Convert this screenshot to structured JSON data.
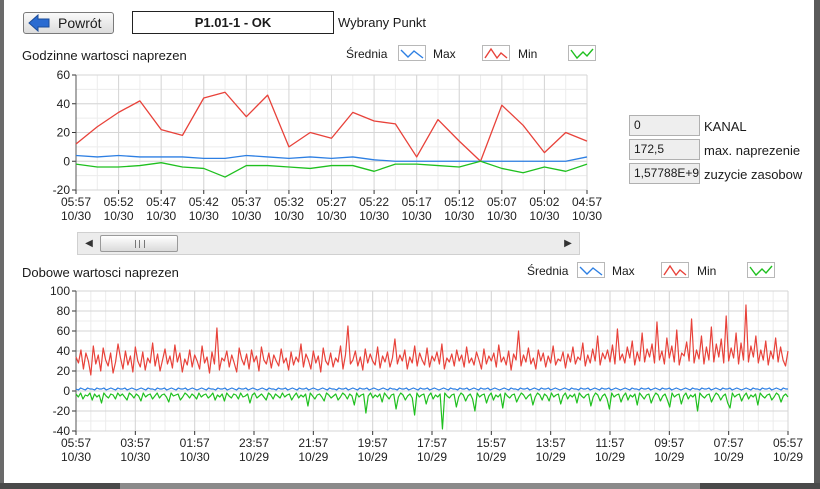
{
  "toolbar": {
    "back_label": "Powrót",
    "status": "P1.01-1 - OK",
    "status_caption": "Wybrany Punkt"
  },
  "side_panel": [
    {
      "value": "0",
      "label": "KANAL"
    },
    {
      "value": "172,5",
      "label": "max. naprezenie"
    },
    {
      "value": "1,57788E+9",
      "label": "zuzycie zasobow"
    }
  ],
  "legend": {
    "avg": "Średnia",
    "max": "Max",
    "min": "Min"
  },
  "colors": {
    "red": "#e8423a",
    "blue": "#2d7fe3",
    "green": "#1fc01f",
    "grid": "#d6d6d6"
  },
  "chart_data": [
    {
      "type": "line",
      "title": "Godzinne wartosci naprezen",
      "ylim": [
        -20,
        60
      ],
      "yticks": [
        -20,
        0,
        20,
        40,
        60
      ],
      "x_tick_labels": [
        [
          "05:57",
          "10/30"
        ],
        [
          "05:52",
          "10/30"
        ],
        [
          "05:47",
          "10/30"
        ],
        [
          "05:42",
          "10/30"
        ],
        [
          "05:37",
          "10/30"
        ],
        [
          "05:32",
          "10/30"
        ],
        [
          "05:27",
          "10/30"
        ],
        [
          "05:22",
          "10/30"
        ],
        [
          "05:17",
          "10/30"
        ],
        [
          "05:12",
          "10/30"
        ],
        [
          "05:07",
          "10/30"
        ],
        [
          "05:02",
          "10/30"
        ],
        [
          "04:57",
          "10/30"
        ]
      ],
      "series": [
        {
          "color": "red",
          "values": [
            12,
            24,
            34,
            42,
            22,
            18,
            44,
            48,
            31,
            46,
            10,
            20,
            16,
            34,
            28,
            26,
            3,
            29,
            14,
            0,
            39,
            25,
            6,
            20,
            14
          ]
        },
        {
          "color": "blue",
          "values": [
            4,
            3,
            4,
            3,
            3,
            3,
            2,
            2,
            4,
            3,
            2,
            3,
            2,
            3,
            1,
            0,
            0,
            0,
            0,
            0,
            0,
            0,
            0,
            0,
            3
          ]
        },
        {
          "color": "green",
          "values": [
            -2,
            -4,
            -4,
            -3,
            -1,
            -4,
            -5,
            -11,
            -3,
            -3,
            -4,
            -5,
            -3,
            -3,
            -7,
            -2,
            -2,
            -3,
            -4,
            0,
            -5,
            -8,
            -4,
            -7,
            -2
          ]
        }
      ]
    },
    {
      "type": "line",
      "title": "Dobowe wartosci naprezen",
      "ylim": [
        -40,
        100
      ],
      "yticks": [
        -40,
        -20,
        0,
        20,
        40,
        60,
        80,
        100
      ],
      "x_tick_labels": [
        [
          "05:57",
          "10/30"
        ],
        [
          "03:57",
          "10/30"
        ],
        [
          "01:57",
          "10/30"
        ],
        [
          "23:57",
          "10/29"
        ],
        [
          "21:57",
          "10/29"
        ],
        [
          "19:57",
          "10/29"
        ],
        [
          "17:57",
          "10/29"
        ],
        [
          "15:57",
          "10/29"
        ],
        [
          "13:57",
          "10/29"
        ],
        [
          "11:57",
          "10/29"
        ],
        [
          "09:57",
          "10/29"
        ],
        [
          "07:57",
          "10/29"
        ],
        [
          "05:57",
          "10/29"
        ]
      ],
      "series": [
        {
          "color": "red",
          "values": [
            34,
            28,
            41,
            22,
            38,
            30,
            16,
            45,
            27,
            36,
            20,
            43,
            31,
            25,
            38,
            18,
            29,
            47,
            33,
            22,
            40,
            26,
            35,
            19,
            44,
            30,
            24,
            39,
            21,
            33,
            28,
            48,
            25,
            37,
            20,
            31,
            42,
            27,
            35,
            23,
            46,
            29,
            38,
            19,
            32,
            26,
            41,
            24,
            36,
            30,
            22,
            45,
            28,
            34,
            18,
            39,
            27,
            63,
            21,
            33,
            30,
            40,
            24,
            36,
            28,
            19,
            43,
            32,
            26,
            37,
            22,
            41,
            29,
            35,
            20,
            44,
            31,
            27,
            38,
            23,
            36,
            30,
            25,
            42,
            28,
            33,
            21,
            39,
            26,
            34,
            29,
            47,
            24,
            37,
            31,
            22,
            40,
            28,
            35,
            19,
            43,
            30,
            26,
            38,
            24,
            33,
            29,
            45,
            22,
            36,
            65,
            27,
            31,
            40,
            25,
            34,
            21,
            42,
            28,
            37,
            30,
            26,
            44,
            23,
            35,
            29,
            39,
            24,
            33,
            52,
            27,
            36,
            30,
            41,
            22,
            34,
            28,
            45,
            25,
            38,
            31,
            26,
            43,
            24,
            35,
            30,
            39,
            27,
            47,
            22,
            33,
            29,
            37,
            25,
            41,
            30,
            36,
            24,
            44,
            28,
            33,
            26,
            39,
            31,
            22,
            42,
            27,
            35,
            30,
            38,
            24,
            46,
            29,
            34,
            26,
            40,
            21,
            37,
            31,
            60,
            25,
            36,
            29,
            43,
            27,
            33,
            22,
            41,
            30,
            38,
            24,
            35,
            28,
            45,
            26,
            32,
            30,
            39,
            23,
            37,
            29,
            44,
            27,
            34,
            31,
            48,
            25,
            36,
            28,
            42,
            30,
            55,
            26,
            38,
            32,
            41,
            29,
            46,
            27,
            62,
            31,
            37,
            28,
            44,
            33,
            50,
            26,
            39,
            30,
            58,
            29,
            42,
            34,
            47,
            28,
            69,
            31,
            40,
            27,
            53,
            33,
            45,
            29,
            61,
            26,
            38,
            35,
            49,
            30,
            72,
            28,
            41,
            32,
            55,
            27,
            44,
            31,
            64,
            29,
            47,
            34,
            52,
            28,
            75,
            30,
            43,
            33,
            58,
            27,
            48,
            31,
            86,
            29,
            45,
            34,
            55,
            28,
            41,
            31,
            50,
            26,
            40,
            32,
            53,
            29,
            44,
            31,
            25,
            40
          ]
        },
        {
          "color": "blue",
          "values": [
            2,
            1,
            3,
            2,
            1,
            3,
            2,
            2,
            1,
            3,
            2,
            2,
            3,
            1,
            2,
            3,
            2,
            1,
            3,
            2,
            2,
            3,
            1,
            2,
            3,
            2,
            1,
            2,
            3,
            2,
            1,
            3,
            2,
            2,
            1,
            3,
            2,
            2,
            3,
            1,
            2,
            3,
            2,
            1,
            3,
            2,
            2,
            3,
            1,
            2,
            3,
            2,
            1,
            2,
            3,
            2,
            1,
            3,
            2,
            2,
            1,
            3,
            2,
            2,
            3,
            1,
            2,
            3,
            2,
            1,
            3,
            2,
            2,
            3,
            1,
            2,
            3,
            2,
            1,
            2,
            3,
            2,
            1,
            3,
            2,
            2,
            1,
            3,
            2,
            2,
            3,
            1,
            2,
            3,
            2,
            1,
            3,
            2,
            2,
            3,
            1,
            2,
            3,
            2,
            1,
            2,
            3,
            2,
            1,
            3,
            2,
            2,
            1,
            3,
            2,
            2,
            3,
            1,
            2,
            3,
            2,
            1,
            3,
            2,
            2,
            3,
            1,
            2,
            3,
            2,
            1,
            2,
            3,
            2,
            1,
            3,
            2,
            2,
            1,
            3,
            2,
            2,
            3,
            1,
            2,
            3,
            2,
            1,
            3,
            2,
            2,
            3,
            1,
            2,
            3,
            2,
            1,
            2,
            3,
            2,
            1,
            3,
            2,
            2,
            1,
            3,
            2,
            2,
            3,
            1,
            2,
            3,
            2,
            1,
            3,
            2,
            2,
            3,
            1,
            2,
            3,
            2,
            1,
            2,
            3,
            2,
            1,
            3,
            2,
            2,
            1,
            3,
            2,
            2,
            3,
            1,
            2,
            3,
            2,
            1,
            3,
            2,
            2,
            3,
            1,
            2,
            3,
            2,
            1,
            2,
            3,
            2,
            1,
            3,
            2,
            2,
            1,
            3,
            2,
            2,
            3,
            1,
            2,
            3,
            2,
            1,
            3,
            2,
            2,
            3,
            1,
            2,
            3,
            2,
            1,
            2,
            3,
            2,
            1,
            3,
            2,
            2,
            1,
            3,
            2,
            2,
            3,
            1,
            2,
            3,
            2,
            1,
            3,
            2,
            2,
            3,
            1,
            2,
            3,
            2,
            1,
            2,
            3,
            2,
            1,
            3,
            2,
            2,
            1,
            3,
            2,
            2,
            3,
            1,
            2,
            3,
            2,
            1,
            3,
            2,
            2,
            3,
            1,
            2,
            3,
            2,
            1,
            2,
            3,
            2,
            1,
            3,
            2,
            2,
            1,
            3,
            2,
            2,
            3,
            1,
            2,
            3,
            2,
            1,
            3,
            2,
            2
          ]
        },
        {
          "color": "green",
          "values": [
            -3,
            -6,
            -2,
            -8,
            -4,
            -5,
            -2,
            -9,
            -3,
            -6,
            -4,
            -12,
            -2,
            -5,
            -7,
            -3,
            -4,
            -8,
            -2,
            -5,
            -3,
            -6,
            -9,
            -2,
            -4,
            -7,
            -3,
            -5,
            -10,
            -2,
            -6,
            -4,
            -3,
            -8,
            -5,
            -2,
            -7,
            -4,
            -3,
            -6,
            -11,
            -2,
            -5,
            -4,
            -3,
            -9,
            -6,
            -2,
            -4,
            -7,
            -3,
            -5,
            -8,
            -2,
            -6,
            -4,
            -3,
            -7,
            -5,
            -2,
            -9,
            -4,
            -6,
            -3,
            -10,
            -2,
            -5,
            -7,
            -3,
            -4,
            -8,
            -2,
            -6,
            -5,
            -3,
            -12,
            -4,
            -2,
            -7,
            -5,
            -3,
            -6,
            -9,
            -2,
            -4,
            -8,
            -3,
            -5,
            -7,
            -2,
            -6,
            -4,
            -3,
            -9,
            -5,
            -2,
            -7,
            -4,
            -6,
            -3,
            -15,
            -2,
            -5,
            -8,
            -4,
            -3,
            -6,
            -10,
            -2,
            -4,
            -7,
            -5,
            -3,
            -9,
            -6,
            -2,
            -4,
            -8,
            -3,
            -5,
            -14,
            -2,
            -6,
            -4,
            -3,
            -22,
            -5,
            -2,
            -7,
            -4,
            -6,
            -3,
            -11,
            -2,
            -5,
            -8,
            -4,
            -3,
            -18,
            -6,
            -2,
            -4,
            -9,
            -5,
            -3,
            -7,
            -24,
            -2,
            -6,
            -4,
            -3,
            -13,
            -5,
            -2,
            -8,
            -4,
            -6,
            -3,
            -38,
            -2,
            -5,
            -7,
            -4,
            -3,
            -16,
            -6,
            -2,
            -4,
            -10,
            -5,
            -3,
            -8,
            -20,
            -2,
            -6,
            -4,
            -3,
            -12,
            -5,
            -2,
            -9,
            -4,
            -6,
            -3,
            -17,
            -2,
            -5,
            -7,
            -4,
            -3,
            -11,
            -6,
            -2,
            -4,
            -8,
            -5,
            -3,
            -14,
            -6,
            -2,
            -4,
            -9,
            -3,
            -5,
            -10,
            -2,
            -6,
            -4,
            -3,
            -13,
            -5,
            -2,
            -8,
            -4,
            -6,
            -3,
            -12,
            -2,
            -5,
            -7,
            -4,
            -3,
            -15,
            -6,
            -2,
            -4,
            -10,
            -5,
            -3,
            -8,
            -18,
            -2,
            -6,
            -4,
            -3,
            -11,
            -5,
            -2,
            -9,
            -4,
            -6,
            -3,
            -14,
            -2,
            -5,
            -8,
            -4,
            -3,
            -12,
            -6,
            -2,
            -4,
            -10,
            -5,
            -3,
            -9,
            -16,
            -2,
            -6,
            -4,
            -3,
            -13,
            -5,
            -2,
            -8,
            -4,
            -6,
            -3,
            -20,
            -2,
            -5,
            -7,
            -4,
            -3,
            -11,
            -6,
            -2,
            -4,
            -9,
            -5,
            -3,
            -12,
            -17,
            -2,
            -6,
            -4,
            -3,
            -10,
            -5,
            -2,
            -8,
            -4,
            -6,
            -3,
            -14,
            -2,
            -5,
            -7,
            -4,
            -3,
            -9,
            -6,
            -2,
            -4,
            -11,
            -5,
            -3,
            -6
          ]
        }
      ]
    }
  ]
}
